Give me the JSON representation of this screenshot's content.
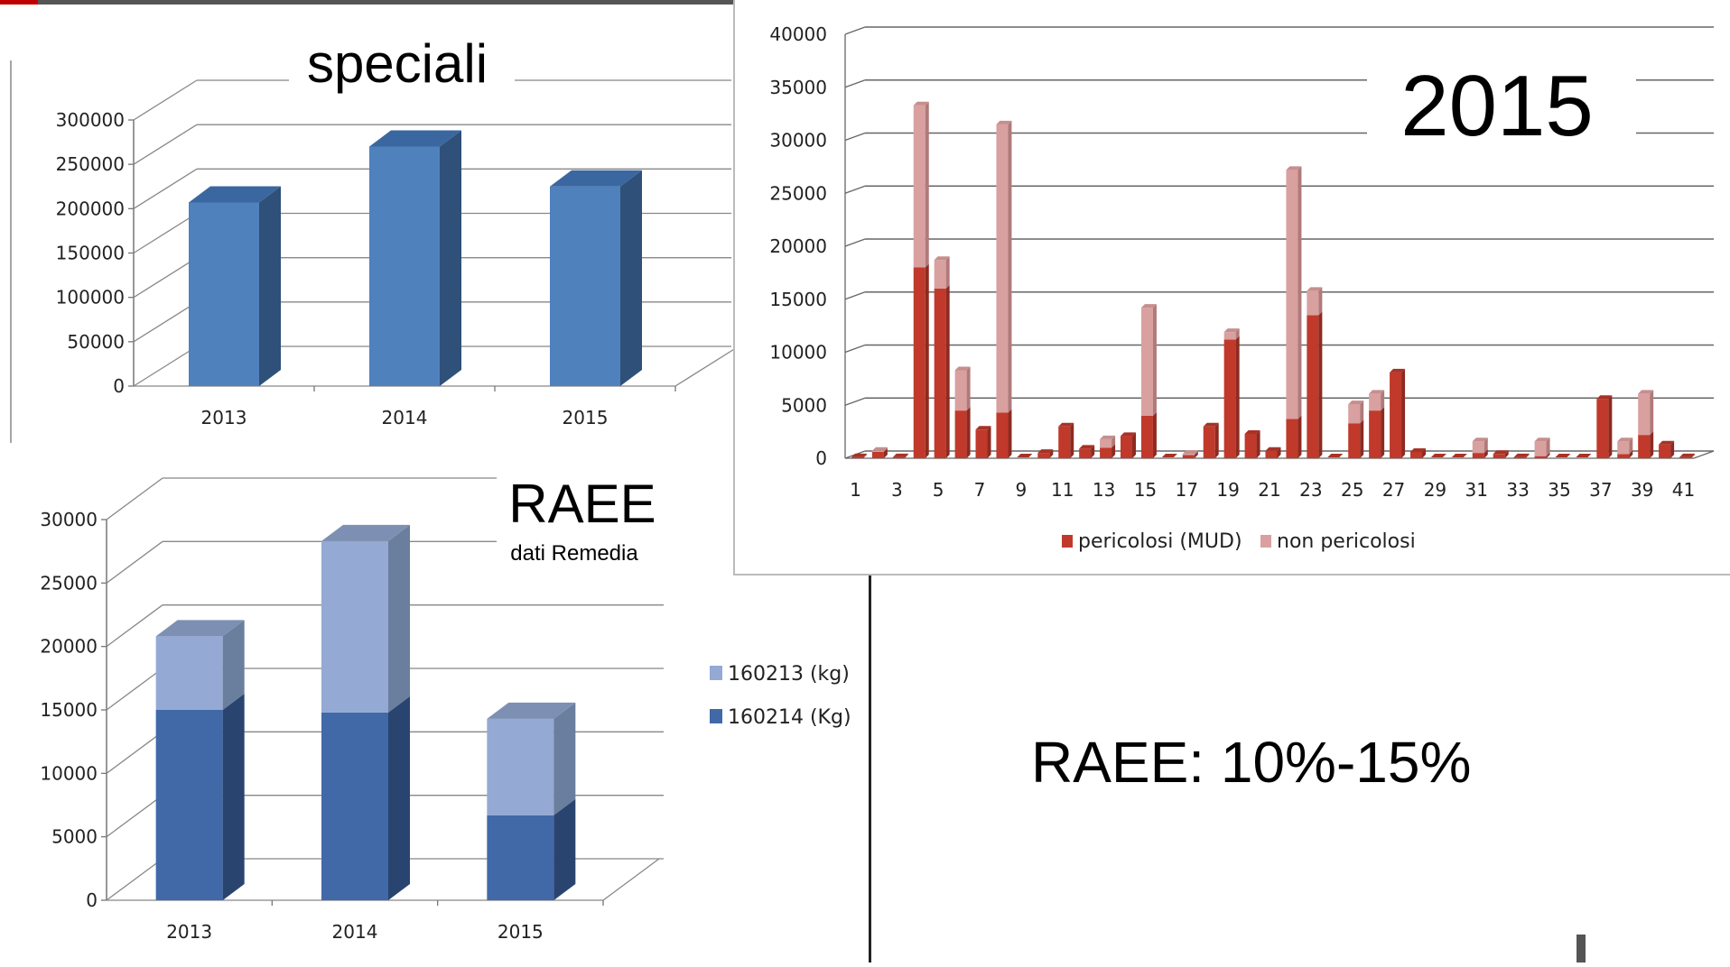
{
  "chart_data": [
    {
      "id": "speciali",
      "type": "bar",
      "title": "speciali",
      "categories": [
        "2013",
        "2014",
        "2015"
      ],
      "series": [
        {
          "values": [
            207000,
            270000,
            225000
          ]
        }
      ],
      "ylim": [
        0,
        300000
      ],
      "yticks": [
        0,
        50000,
        100000,
        150000,
        200000,
        250000,
        300000
      ],
      "grid": true,
      "colors": {
        "front": "#4f81bd",
        "side": "#2f5078",
        "top": "#3b67a0"
      }
    },
    {
      "id": "annual2015",
      "type": "bar",
      "stacked": true,
      "title": "2015",
      "categories": [
        "1",
        "2",
        "3",
        "4",
        "5",
        "6",
        "7",
        "8",
        "9",
        "10",
        "11",
        "12",
        "13",
        "14",
        "15",
        "16",
        "17",
        "18",
        "19",
        "20",
        "21",
        "22",
        "23",
        "24",
        "25",
        "26",
        "27",
        "28",
        "29",
        "30",
        "31",
        "32",
        "33",
        "34",
        "35",
        "36",
        "37",
        "38",
        "39",
        "40",
        "41"
      ],
      "x_tick_labels": [
        "1",
        "3",
        "5",
        "7",
        "9",
        "11",
        "13",
        "15",
        "17",
        "19",
        "21",
        "23",
        "25",
        "27",
        "29",
        "31",
        "33",
        "35",
        "37",
        "39",
        "41"
      ],
      "series": [
        {
          "name": "pericolosi (MUD)",
          "color": "#c0392b",
          "values": [
            100,
            600,
            100,
            18000,
            16000,
            4500,
            2700,
            4300,
            0,
            500,
            3000,
            900,
            1000,
            2100,
            4000,
            0,
            300,
            3000,
            11200,
            2300,
            700,
            3700,
            13500,
            0,
            3300,
            4500,
            8100,
            600,
            0,
            0,
            500,
            400,
            100,
            200,
            0,
            0,
            5600,
            400,
            2200,
            1300,
            100
          ]
        },
        {
          "name": "non pericolosi",
          "color": "#d9a0a0",
          "values": [
            0,
            100,
            0,
            15300,
            2700,
            3800,
            0,
            27200,
            0,
            0,
            0,
            0,
            800,
            0,
            10200,
            0,
            100,
            0,
            700,
            0,
            0,
            23500,
            2300,
            0,
            1800,
            1600,
            0,
            0,
            0,
            0,
            1100,
            0,
            0,
            1400,
            0,
            0,
            0,
            1200,
            3900,
            0,
            0
          ]
        }
      ],
      "ylim": [
        0,
        40000
      ],
      "yticks": [
        0,
        5000,
        10000,
        15000,
        20000,
        25000,
        30000,
        35000,
        40000
      ],
      "grid": true,
      "legend": "bottom"
    },
    {
      "id": "raee",
      "type": "bar",
      "stacked": true,
      "title": "RAEE",
      "subtitle": "dati Remedia",
      "categories": [
        "2013",
        "2014",
        "2015"
      ],
      "series": [
        {
          "name": "160214 (Kg)",
          "values": [
            15000,
            14800,
            6700
          ],
          "colors": {
            "front": "#4169a8",
            "side": "#2a4470",
            "top": "#37598f"
          }
        },
        {
          "name": "160213 (kg)",
          "values": [
            5800,
            13500,
            7600
          ],
          "colors": {
            "front": "#94a9d3",
            "side": "#6a7e9e",
            "top": "#7d90b3"
          }
        }
      ],
      "ylim": [
        0,
        30000
      ],
      "yticks": [
        0,
        5000,
        10000,
        15000,
        20000,
        25000,
        30000
      ],
      "grid": true,
      "legend": "right"
    }
  ],
  "note": "RAEE: 10%-15%"
}
